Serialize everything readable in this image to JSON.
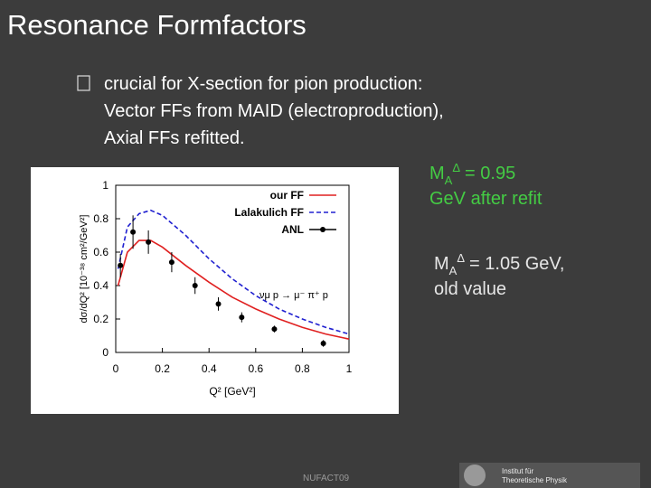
{
  "title": "Resonance Formfactors",
  "bullet": {
    "lines": [
      "crucial for X-section for pion production:",
      "Vector FFs from MAID (electroproduction),",
      "Axial FFs refitted."
    ]
  },
  "mass_notes": [
    {
      "symbol": "M",
      "sub": "A",
      "sup": "Δ",
      "lines": [
        "= 0.95",
        "GeV after refit"
      ]
    },
    {
      "symbol": "M",
      "sub": "A",
      "sup": "Δ",
      "lines": [
        "= 1.05 GeV,",
        "old value"
      ]
    }
  ],
  "chart_data": {
    "type": "line",
    "xlabel": "Q² [GeV²]",
    "ylabel": "dσ/dQ² [10⁻³⁸ cm²/GeV²]",
    "annotation": "νμ p → μ⁻ π⁺ p",
    "xlim": [
      0,
      1
    ],
    "xticks": [
      0,
      0.2,
      0.4,
      0.6,
      0.8,
      1
    ],
    "ylim": [
      0,
      1
    ],
    "yticks": [
      0,
      0.2,
      0.4,
      0.6,
      0.8,
      1
    ],
    "legend": "top-right",
    "series": [
      {
        "name": "our FF",
        "color": "#e02020",
        "style": "solid",
        "x": [
          0.01,
          0.05,
          0.1,
          0.15,
          0.2,
          0.3,
          0.4,
          0.5,
          0.6,
          0.7,
          0.8,
          0.9,
          1
        ],
        "values": [
          0.4,
          0.6,
          0.67,
          0.67,
          0.63,
          0.52,
          0.42,
          0.33,
          0.26,
          0.2,
          0.15,
          0.11,
          0.08
        ]
      },
      {
        "name": "Lalakulich FF",
        "color": "#2020d0",
        "style": "dashed",
        "x": [
          0.01,
          0.05,
          0.1,
          0.15,
          0.2,
          0.3,
          0.4,
          0.5,
          0.6,
          0.7,
          0.8,
          0.9,
          1
        ],
        "values": [
          0.5,
          0.75,
          0.83,
          0.85,
          0.82,
          0.7,
          0.56,
          0.44,
          0.34,
          0.26,
          0.2,
          0.15,
          0.11
        ]
      },
      {
        "name": "ANL",
        "color": "#000000",
        "style": "points",
        "x": [
          0.02,
          0.074,
          0.14,
          0.24,
          0.34,
          0.44,
          0.54,
          0.68,
          0.89
        ],
        "values": [
          0.52,
          0.72,
          0.66,
          0.54,
          0.4,
          0.29,
          0.21,
          0.14,
          0.054
        ],
        "errors": [
          0.07,
          0.1,
          0.07,
          0.06,
          0.05,
          0.04,
          0.03,
          0.02,
          0.02
        ]
      }
    ]
  },
  "footer": "NUFACT09",
  "logo": {
    "lines": [
      "Institut für",
      "Theoretische Physik"
    ]
  }
}
